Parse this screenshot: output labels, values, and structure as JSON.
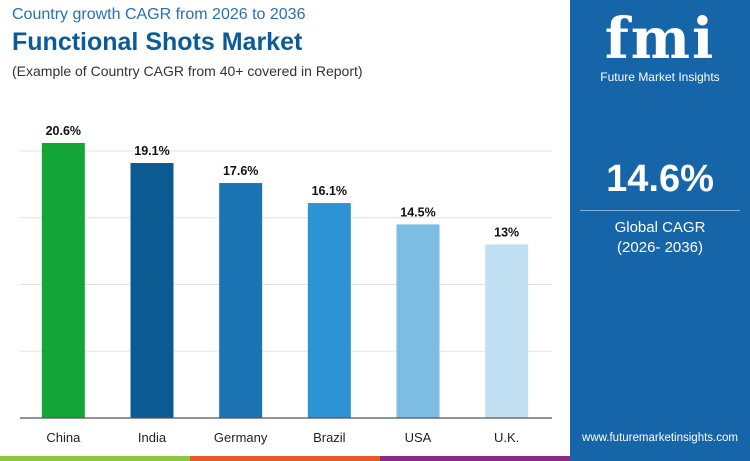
{
  "header": {
    "subtitle": "Country growth CAGR from 2026 to 2036",
    "title": "Functional Shots Market",
    "note": "(Example of Country CAGR from 40+ covered in Report)"
  },
  "sidebar": {
    "logo_text": "fmi",
    "logo_subtext": "Future Market Insights",
    "global_value": "14.6%",
    "global_label": "Global CAGR",
    "global_period": "(2026- 2036)",
    "url": "www.futuremarketinsights.com",
    "bg_color": "#1565a8"
  },
  "chart_data": {
    "type": "bar",
    "categories": [
      "China",
      "India",
      "Germany",
      "Brazil",
      "USA",
      "U.K."
    ],
    "values": [
      20.6,
      19.1,
      17.6,
      16.1,
      14.5,
      13
    ],
    "labels": [
      "20.6%",
      "19.1%",
      "17.6%",
      "16.1%",
      "14.5%",
      "13%"
    ],
    "colors": [
      "#13a538",
      "#0b5a92",
      "#1c74b4",
      "#2e93d5",
      "#7dbde4",
      "#c2e0f3"
    ],
    "ylim": [
      0,
      21
    ],
    "grid": true,
    "title": "",
    "xlabel": "",
    "ylabel": ""
  }
}
